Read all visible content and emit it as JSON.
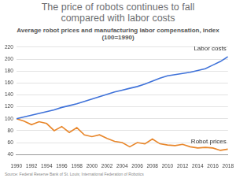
{
  "chart_data": {
    "type": "line",
    "title": "The price of robots continues to fall compared with labor costs",
    "subtitle": "Average robot prices and manufacturing labor compensation, index (100=1990)",
    "source": "Source: Federal Reserve Bank of St. Louis; International Federation of Robotics",
    "x": [
      1990,
      1991,
      1992,
      1993,
      1994,
      1995,
      1996,
      1997,
      1998,
      1999,
      2000,
      2001,
      2002,
      2003,
      2004,
      2005,
      2006,
      2007,
      2008,
      2009,
      2010,
      2011,
      2012,
      2013,
      2014,
      2015,
      2016,
      2017,
      2018
    ],
    "series": [
      {
        "name": "Labor costs",
        "color": "#3f72d9",
        "values": [
          100,
          103,
          106,
          109,
          112,
          115,
          119,
          122,
          125,
          129,
          133,
          137,
          141,
          145,
          148,
          151,
          154,
          158,
          163,
          168,
          172,
          174,
          176,
          178,
          181,
          184,
          190,
          196,
          204
        ]
      },
      {
        "name": "Robot prices",
        "color": "#e8862a",
        "values": [
          100,
          96,
          90,
          95,
          92,
          80,
          87,
          77,
          85,
          73,
          70,
          73,
          67,
          62,
          60,
          53,
          60,
          58,
          66,
          58,
          56,
          55,
          57,
          53,
          51,
          52,
          51,
          47,
          49
        ]
      }
    ],
    "xlim": [
      1990,
      2018
    ],
    "xticks": [
      1990,
      1992,
      1994,
      1996,
      1998,
      2000,
      2002,
      2004,
      2006,
      2008,
      2010,
      2012,
      2014,
      2016,
      2018
    ],
    "ylim": [
      40,
      220
    ],
    "yticks": [
      40,
      60,
      80,
      100,
      120,
      140,
      160,
      180,
      200,
      220
    ],
    "grid": true
  }
}
